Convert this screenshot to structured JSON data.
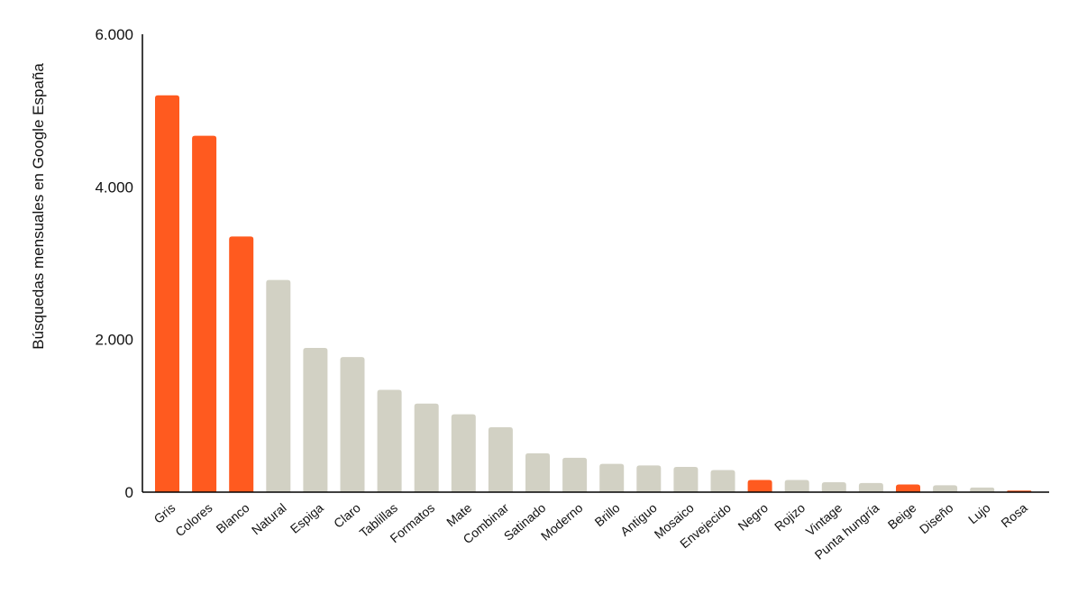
{
  "chart_data": {
    "type": "bar",
    "title": "",
    "xlabel": "",
    "ylabel": "Búsquedas mensuales en Google España",
    "ylim": [
      0,
      6000
    ],
    "yticks": [
      {
        "value": 0,
        "label": "0"
      },
      {
        "value": 2000,
        "label": "2.000"
      },
      {
        "value": 4000,
        "label": "4.000"
      },
      {
        "value": 6000,
        "label": "6.000"
      }
    ],
    "grid": false,
    "legend": "none",
    "categories": [
      "Gris",
      "Colores",
      "Blanco",
      "Natural",
      "Espiga",
      "Claro",
      "Tablillas",
      "Formatos",
      "Mate",
      "Combinar",
      "Satinado",
      "Moderno",
      "Brillo",
      "Antiguo",
      "Mosaico",
      "Envejecido",
      "Negro",
      "Rojizo",
      "Vintage",
      "Punta hungría",
      "Beige",
      "Diseño",
      "Lujo",
      "Rosa"
    ],
    "values": [
      5200,
      4670,
      3350,
      2780,
      1890,
      1770,
      1340,
      1160,
      1020,
      850,
      510,
      450,
      370,
      350,
      330,
      290,
      160,
      160,
      130,
      120,
      100,
      90,
      60,
      20
    ],
    "highlighted": [
      "Gris",
      "Colores",
      "Blanco",
      "Negro",
      "Beige",
      "Rosa"
    ],
    "colors": {
      "highlight": "#FF5A1F",
      "default": "#D2D1C4",
      "axis": "#000000",
      "text": "#111111"
    }
  }
}
